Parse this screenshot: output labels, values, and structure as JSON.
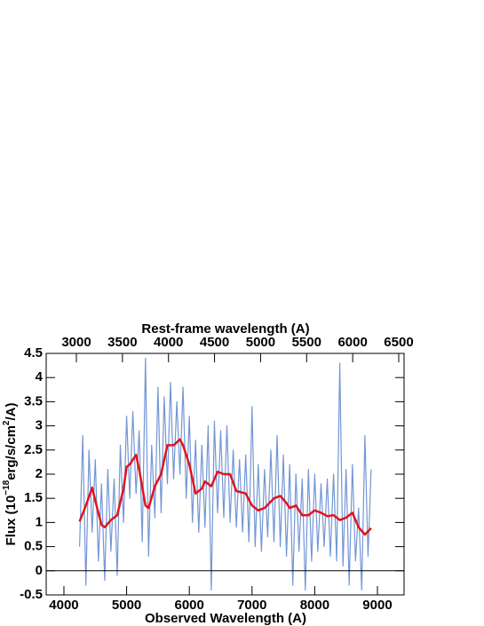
{
  "chart_data": {
    "type": "line",
    "xlabel": "Observed Wavelength (A)",
    "x2label": "Rest-frame wavelength (A)",
    "ylabel_parts": [
      "Flux (10",
      "−18",
      "erg/s/cm",
      "2",
      "/A)"
    ],
    "xlim": [
      3717,
      9425
    ],
    "xticks": [
      4000,
      5000,
      6000,
      7000,
      8000,
      9000
    ],
    "x2lim": [
      2672,
      6558
    ],
    "x2ticks": [
      3000,
      3500,
      4000,
      4500,
      5000,
      5500,
      6000,
      6500
    ],
    "ylim": [
      -0.5,
      4.5
    ],
    "yticks": [
      -0.5,
      0,
      0.5,
      1,
      1.5,
      2,
      2.5,
      3,
      3.5,
      4,
      4.5
    ],
    "reference_line": 0,
    "series": [
      {
        "color": "#7396d4",
        "x": [
          4250,
          4300,
          4350,
          4400,
          4450,
          4500,
          4550,
          4600,
          4650,
          4700,
          4750,
          4800,
          4850,
          4900,
          4950,
          5000,
          5050,
          5100,
          5150,
          5200,
          5250,
          5300,
          5350,
          5400,
          5450,
          5500,
          5550,
          5600,
          5650,
          5700,
          5750,
          5800,
          5850,
          5900,
          5950,
          6000,
          6050,
          6100,
          6150,
          6200,
          6250,
          6300,
          6350,
          6400,
          6450,
          6500,
          6550,
          6600,
          6650,
          6700,
          6750,
          6800,
          6850,
          6900,
          6950,
          7000,
          7050,
          7100,
          7150,
          7200,
          7250,
          7300,
          7350,
          7400,
          7450,
          7500,
          7550,
          7600,
          7650,
          7700,
          7750,
          7800,
          7850,
          7900,
          7950,
          8000,
          8050,
          8100,
          8150,
          8200,
          8250,
          8300,
          8350,
          8400,
          8450,
          8500,
          8550,
          8600,
          8650,
          8700,
          8750,
          8800,
          8850,
          8900
        ],
        "values": [
          0.5,
          2.8,
          -0.3,
          2.5,
          0.8,
          2.3,
          0.2,
          1.8,
          -0.2,
          2.1,
          0.4,
          1.9,
          -0.1,
          2.6,
          1.0,
          3.2,
          1.5,
          3.3,
          1.6,
          2.9,
          0.6,
          4.4,
          0.3,
          2.6,
          1.1,
          3.8,
          1.2,
          3.6,
          1.8,
          3.9,
          1.9,
          3.5,
          2.0,
          3.8,
          1.5,
          3.2,
          1.0,
          2.7,
          0.8,
          2.6,
          0.9,
          3.0,
          -0.4,
          3.1,
          1.2,
          2.9,
          1.1,
          3.0,
          1.0,
          2.5,
          0.9,
          2.3,
          0.8,
          2.4,
          0.6,
          3.4,
          0.5,
          2.2,
          0.4,
          2.1,
          0.7,
          2.5,
          0.6,
          2.8,
          0.5,
          2.4,
          0.3,
          2.2,
          -0.3,
          2.0,
          0.4,
          1.9,
          -0.4,
          2.1,
          0.2,
          2.0,
          0.4,
          1.8,
          0.5,
          1.9,
          0.3,
          2.0,
          0.2,
          4.3,
          0.1,
          2.1,
          -0.3,
          2.2,
          0.2,
          1.3,
          -0.4,
          2.8,
          0.3,
          2.1
        ]
      },
      {
        "color": "#e0141e",
        "x": [
          4250,
          4350,
          4450,
          4500,
          4600,
          4650,
          4750,
          4850,
          4950,
          5000,
          5050,
          5150,
          5200,
          5300,
          5350,
          5450,
          5550,
          5650,
          5750,
          5850,
          5900,
          6000,
          6100,
          6200,
          6250,
          6350,
          6450,
          6550,
          6650,
          6750,
          6900,
          7000,
          7100,
          7200,
          7350,
          7450,
          7550,
          7600,
          7700,
          7800,
          7900,
          8000,
          8100,
          8200,
          8300,
          8400,
          8500,
          8600,
          8700,
          8800,
          8900
        ],
        "values": [
          1.02,
          1.35,
          1.72,
          1.45,
          0.95,
          0.9,
          1.05,
          1.15,
          1.7,
          2.15,
          2.2,
          2.4,
          2.1,
          1.35,
          1.3,
          1.75,
          2.0,
          2.6,
          2.6,
          2.72,
          2.6,
          2.2,
          1.6,
          1.7,
          1.85,
          1.75,
          2.05,
          2.0,
          2.0,
          1.65,
          1.6,
          1.35,
          1.25,
          1.3,
          1.5,
          1.55,
          1.4,
          1.3,
          1.35,
          1.15,
          1.15,
          1.25,
          1.2,
          1.13,
          1.15,
          1.05,
          1.1,
          1.2,
          0.9,
          0.75,
          0.88
        ]
      }
    ]
  }
}
